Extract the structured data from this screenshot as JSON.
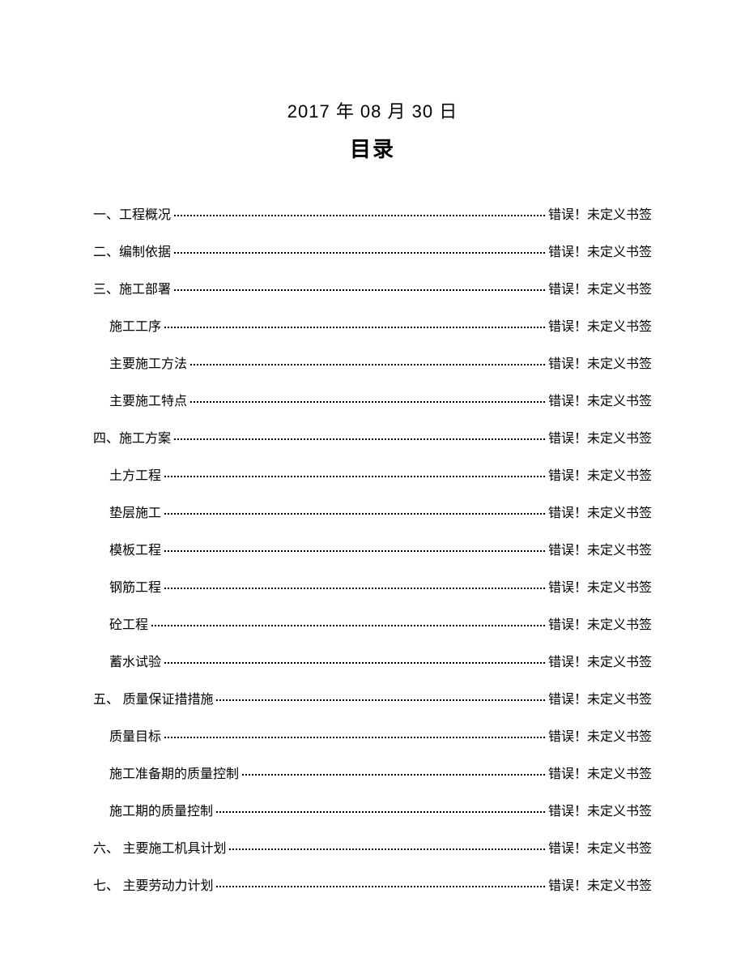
{
  "header": {
    "date": "2017 年 08 月 30 日",
    "title": "目录"
  },
  "error_text": "错误！未定义书签",
  "toc": [
    {
      "label": "一、工程概况",
      "level": 0
    },
    {
      "label": "二、编制依据",
      "level": 0
    },
    {
      "label": "三、施工部署",
      "level": 0
    },
    {
      "label": "施工工序",
      "level": 1
    },
    {
      "label": "主要施工方法",
      "level": 1
    },
    {
      "label": "主要施工特点",
      "level": 1
    },
    {
      "label": "四、施工方案",
      "level": 0
    },
    {
      "label": "土方工程",
      "level": 1
    },
    {
      "label": "垫层施工",
      "level": 1
    },
    {
      "label": "模板工程",
      "level": 1
    },
    {
      "label": "钢筋工程",
      "level": 1
    },
    {
      "label": "砼工程",
      "level": 1
    },
    {
      "label": "蓄水试验",
      "level": 1
    },
    {
      "label": "五、 质量保证措措施",
      "level": 0
    },
    {
      "label": "质量目标",
      "level": 1
    },
    {
      "label": "施工准备期的质量控制",
      "level": 1
    },
    {
      "label": "施工期的质量控制",
      "level": 1
    },
    {
      "label": "六、 主要施工机具计划",
      "level": 0
    },
    {
      "label": "七、 主要劳动力计划",
      "level": 0
    }
  ]
}
